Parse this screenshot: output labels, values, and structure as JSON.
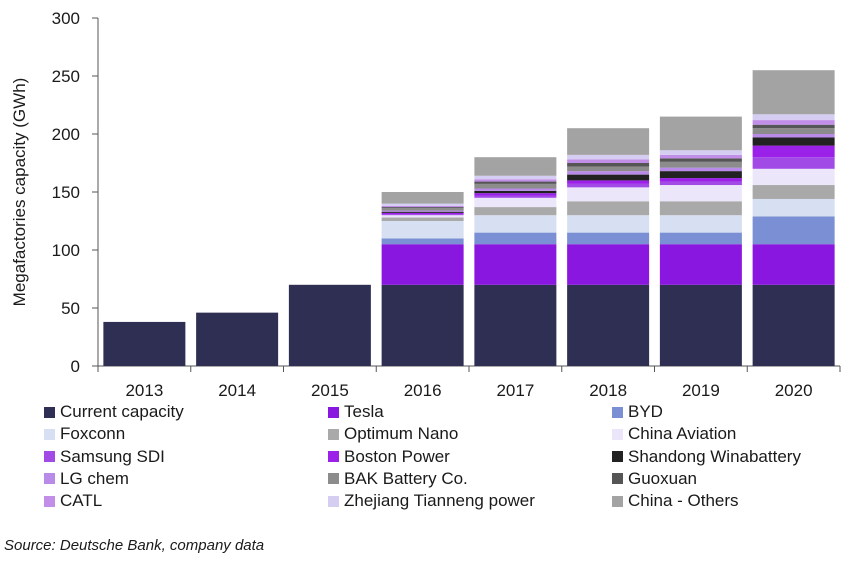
{
  "chart_data": {
    "type": "bar",
    "stacked": true,
    "categories": [
      "2013",
      "2014",
      "2015",
      "2016",
      "2017",
      "2018",
      "2019",
      "2020"
    ],
    "ylabel": "Megafactories capacity (GWh)",
    "xlabel": "",
    "ylim": [
      0,
      300
    ],
    "yticks": [
      0,
      50,
      100,
      150,
      200,
      250,
      300
    ],
    "grid": false,
    "legend_position": "bottom",
    "series": [
      {
        "name": "Current capacity",
        "color": "#2e2f52",
        "values": [
          38,
          46,
          70,
          70,
          70,
          70,
          70,
          70
        ]
      },
      {
        "name": "Tesla",
        "color": "#8a17e0",
        "values": [
          0,
          0,
          0,
          35,
          35,
          35,
          35,
          35
        ]
      },
      {
        "name": "BYD",
        "color": "#7b8fd4",
        "values": [
          0,
          0,
          0,
          5,
          10,
          10,
          10,
          24
        ]
      },
      {
        "name": "Foxconn",
        "color": "#d6e0f2",
        "values": [
          0,
          0,
          0,
          15,
          15,
          15,
          15,
          15
        ]
      },
      {
        "name": "Optimum Nano",
        "color": "#a9a9a9",
        "values": [
          0,
          0,
          0,
          3,
          7,
          12,
          12,
          12
        ]
      },
      {
        "name": "China Aviation",
        "color": "#ece6fa",
        "values": [
          0,
          0,
          0,
          2,
          8,
          12,
          14,
          14
        ]
      },
      {
        "name": "Samsung SDI",
        "color": "#a24ae6",
        "values": [
          0,
          0,
          0,
          1,
          2,
          3,
          3,
          10
        ]
      },
      {
        "name": "Boston Power",
        "color": "#9b20e8",
        "values": [
          0,
          0,
          0,
          1,
          2,
          3,
          3,
          10
        ]
      },
      {
        "name": "Shandong Winabattery",
        "color": "#222222",
        "values": [
          0,
          0,
          0,
          1,
          2,
          5,
          6,
          7
        ]
      },
      {
        "name": "LG chem",
        "color": "#b98be8",
        "values": [
          0,
          0,
          0,
          1,
          2,
          3,
          3,
          3
        ]
      },
      {
        "name": "BAK Battery Co.",
        "color": "#8c8c8c",
        "values": [
          0,
          0,
          0,
          2,
          4,
          4,
          5,
          5
        ]
      },
      {
        "name": "Guoxuan",
        "color": "#555555",
        "values": [
          0,
          0,
          0,
          1,
          2,
          3,
          3,
          3
        ]
      },
      {
        "name": "CATL",
        "color": "#c28fe8",
        "values": [
          0,
          0,
          0,
          1,
          2,
          3,
          3,
          4
        ]
      },
      {
        "name": "Zhejiang Tianneng power",
        "color": "#d6cdf3",
        "values": [
          0,
          0,
          0,
          2,
          3,
          4,
          4,
          5
        ]
      },
      {
        "name": "China - Others",
        "color": "#a3a3a3",
        "values": [
          0,
          0,
          0,
          10,
          16,
          23,
          29,
          38
        ]
      }
    ]
  },
  "source_text": "Source: Deutsche Bank, company data"
}
